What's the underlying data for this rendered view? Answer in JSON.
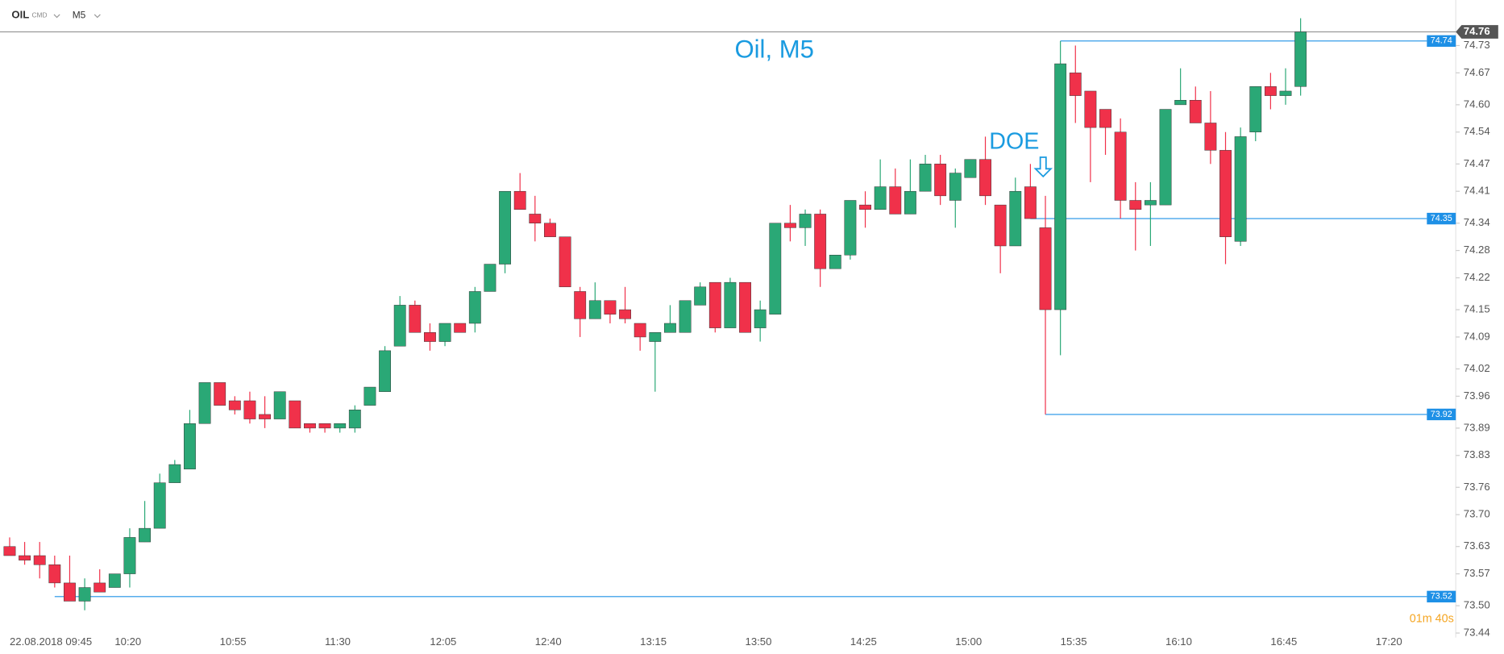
{
  "header": {
    "symbol": "OIL",
    "kind": "CMD",
    "interval": "M5"
  },
  "chart_data": {
    "type": "candlestick",
    "title": "Oil, M5",
    "annotation": "DOE",
    "date": "22.08.2018",
    "countdown": "01m 40s",
    "up_color": "#2aa876",
    "down_color": "#f0314a",
    "level_color": "#1e90e6",
    "grid": false,
    "categories": [
      "09:45",
      null,
      null,
      null,
      null,
      null,
      null,
      "10:20",
      null,
      null,
      null,
      null,
      null,
      null,
      "10:55",
      null,
      null,
      null,
      null,
      null,
      null,
      "11:30",
      null,
      null,
      null,
      null,
      null,
      null,
      "12:05",
      null,
      null,
      null,
      null,
      null,
      null,
      "12:40",
      null,
      null,
      null,
      null,
      null,
      null,
      "13:15",
      null,
      null,
      null,
      null,
      null,
      null,
      "13:50",
      null,
      null,
      null,
      null,
      null,
      null,
      "14:25",
      null,
      null,
      null,
      null,
      null,
      null,
      "15:00",
      null,
      null,
      null,
      null,
      null,
      null,
      "15:35",
      null,
      null,
      null,
      null,
      null,
      null,
      "16:10",
      null,
      null,
      null,
      null,
      null,
      null,
      "16:45",
      null,
      null,
      null,
      null,
      null,
      null,
      "17:20",
      null,
      null,
      null
    ],
    "open": [
      73.63,
      73.61,
      73.61,
      73.59,
      73.55,
      73.51,
      73.55,
      73.54,
      73.57,
      73.64,
      73.67,
      73.77,
      73.8,
      73.9,
      73.99,
      73.95,
      73.95,
      73.92,
      73.91,
      73.95,
      73.9,
      73.9,
      73.89,
      73.89,
      73.94,
      73.97,
      74.07,
      74.16,
      74.1,
      74.08,
      74.12,
      74.12,
      74.19,
      74.25,
      74.41,
      74.36,
      74.34,
      74.31,
      74.19,
      74.13,
      74.17,
      74.15,
      74.12,
      74.08,
      74.1,
      74.1,
      74.16,
      74.21,
      74.11,
      74.21,
      74.11,
      74.14,
      74.34,
      74.33,
      74.36,
      74.24,
      74.27,
      74.38,
      74.37,
      74.42,
      74.36,
      74.41,
      74.47,
      74.39,
      74.44,
      74.48,
      74.38,
      74.29,
      74.42,
      74.33,
      74.15,
      74.67,
      74.63,
      74.59,
      74.54,
      74.39,
      74.38,
      74.38,
      74.6,
      74.61,
      74.56,
      74.5,
      74.3,
      74.54,
      74.64,
      74.62,
      74.64,
      null,
      null,
      null,
      null,
      null,
      null,
      null,
      null
    ],
    "high": [
      73.65,
      73.64,
      73.64,
      73.61,
      73.61,
      73.56,
      73.58,
      73.57,
      73.67,
      73.73,
      73.79,
      73.82,
      73.93,
      73.99,
      73.99,
      73.96,
      73.97,
      73.96,
      73.97,
      73.95,
      73.9,
      73.9,
      73.9,
      73.94,
      73.98,
      74.07,
      74.18,
      74.17,
      74.12,
      74.12,
      74.12,
      74.2,
      74.25,
      74.41,
      74.45,
      74.4,
      74.35,
      74.31,
      74.2,
      74.21,
      74.17,
      74.2,
      74.12,
      74.1,
      74.16,
      74.17,
      74.21,
      74.21,
      74.22,
      74.21,
      74.17,
      74.34,
      74.38,
      74.37,
      74.37,
      74.27,
      74.39,
      74.41,
      74.48,
      74.46,
      74.48,
      74.49,
      74.49,
      74.46,
      74.48,
      74.53,
      74.38,
      74.44,
      74.47,
      74.4,
      74.74,
      74.73,
      74.63,
      74.59,
      74.57,
      74.43,
      74.43,
      74.59,
      74.68,
      74.64,
      74.63,
      74.54,
      74.55,
      74.64,
      74.67,
      74.68,
      74.79,
      null,
      null,
      null,
      null,
      null,
      null,
      null,
      null
    ],
    "low": [
      73.61,
      73.59,
      73.56,
      73.54,
      73.51,
      73.49,
      73.53,
      73.54,
      73.54,
      73.64,
      73.67,
      73.77,
      73.8,
      73.9,
      73.94,
      73.92,
      73.9,
      73.89,
      73.91,
      73.89,
      73.88,
      73.88,
      73.88,
      73.88,
      73.94,
      73.97,
      74.07,
      74.1,
      74.06,
      74.07,
      74.1,
      74.1,
      74.19,
      74.23,
      74.37,
      74.3,
      74.31,
      74.2,
      74.09,
      74.13,
      74.12,
      74.12,
      74.06,
      73.97,
      74.1,
      74.1,
      74.16,
      74.1,
      74.11,
      74.1,
      74.08,
      74.14,
      74.3,
      74.29,
      74.2,
      74.24,
      74.26,
      74.33,
      74.37,
      74.36,
      74.36,
      74.41,
      74.38,
      74.33,
      74.44,
      74.38,
      74.23,
      74.29,
      74.35,
      73.92,
      74.05,
      74.56,
      74.43,
      74.49,
      74.35,
      74.28,
      74.29,
      74.38,
      74.6,
      74.56,
      74.47,
      74.25,
      74.29,
      74.52,
      74.59,
      74.6,
      74.62,
      null,
      null,
      null,
      null,
      null,
      null,
      null,
      null
    ],
    "close": [
      73.61,
      73.6,
      73.59,
      73.55,
      73.51,
      73.54,
      73.53,
      73.57,
      73.65,
      73.67,
      73.77,
      73.81,
      73.9,
      73.99,
      73.94,
      73.93,
      73.91,
      73.91,
      73.97,
      73.89,
      73.89,
      73.89,
      73.9,
      73.93,
      73.98,
      74.06,
      74.16,
      74.1,
      74.08,
      74.12,
      74.1,
      74.19,
      74.25,
      74.41,
      74.37,
      74.34,
      74.31,
      74.2,
      74.13,
      74.17,
      74.14,
      74.13,
      74.09,
      74.1,
      74.12,
      74.17,
      74.2,
      74.11,
      74.21,
      74.1,
      74.15,
      74.34,
      74.33,
      74.36,
      74.24,
      74.27,
      74.39,
      74.37,
      74.42,
      74.36,
      74.41,
      74.47,
      74.4,
      74.45,
      74.48,
      74.4,
      74.29,
      74.41,
      74.35,
      74.15,
      74.69,
      74.62,
      74.55,
      74.55,
      74.39,
      74.37,
      74.39,
      74.59,
      74.61,
      74.56,
      74.5,
      74.31,
      74.53,
      74.64,
      74.62,
      74.63,
      74.76,
      null,
      null,
      null,
      null,
      null,
      null,
      null,
      null
    ],
    "levels": [
      74.74,
      74.35,
      73.92,
      73.52
    ],
    "current": 74.76,
    "ylim": [
      73.43,
      74.83
    ],
    "yticks": [
      74.73,
      74.67,
      {
        "value": 74.6,
        "label": "74.60"
      },
      74.54,
      74.47,
      74.41,
      74.34,
      74.28,
      74.22,
      74.15,
      74.09,
      74.02,
      73.96,
      73.89,
      73.83,
      73.76,
      {
        "value": 73.7,
        "label": "73.70"
      },
      73.63,
      73.57,
      {
        "value": 73.5,
        "label": "73.50"
      },
      73.44
    ]
  }
}
